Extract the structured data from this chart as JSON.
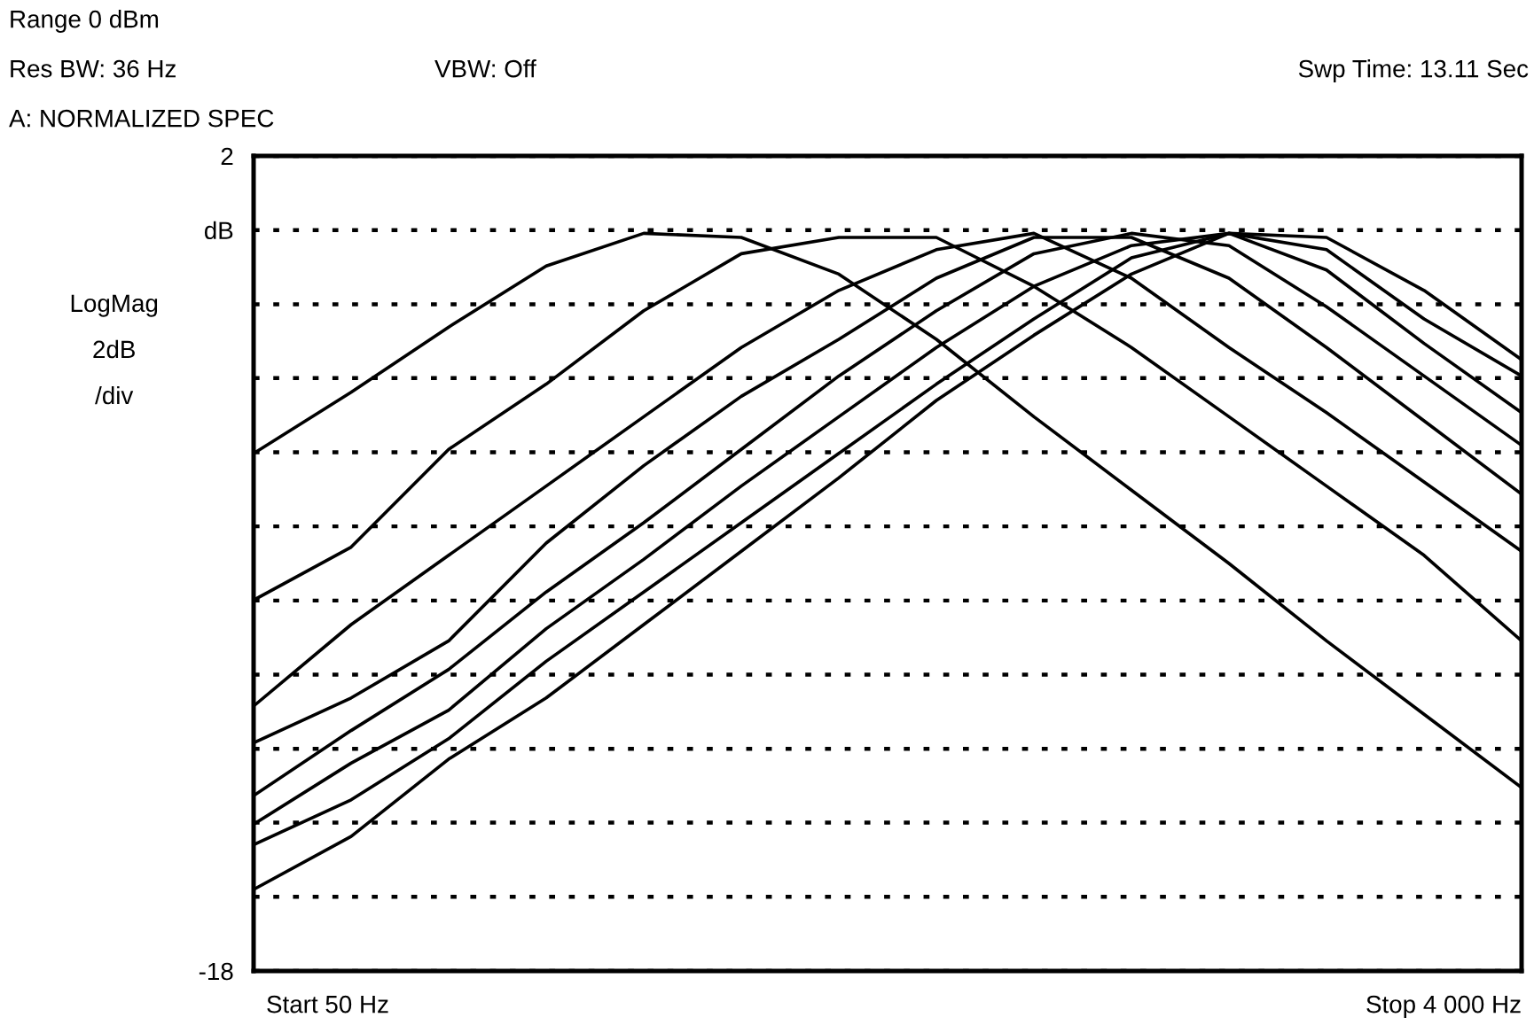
{
  "chart_data": {
    "type": "line",
    "annotations": [
      "Range 0 dBm",
      "Res BW: 36 Hz",
      "VBW: Off",
      "Swp Time: 13.11 Sec",
      "A: NORMALIZED SPEC",
      "Start 50 Hz",
      "Stop 4 000 Hz"
    ],
    "ylabel": "LogMag\n2dB\n/div",
    "categories": [
      null,
      null,
      null,
      null,
      null,
      null,
      null,
      null,
      null,
      null,
      null,
      null,
      null,
      null
    ],
    "ylim": [
      -18,
      2
    ],
    "yticks": [
      2,
      {
        "value": 0.18,
        "label": "dB"
      },
      {
        "value": -1.64,
        "label": null
      },
      {
        "value": -3.45,
        "label": null
      },
      {
        "value": -5.27,
        "label": null
      },
      {
        "value": -7.09,
        "label": null
      },
      {
        "value": -8.91,
        "label": null
      },
      {
        "value": -10.73,
        "label": null
      },
      {
        "value": -12.55,
        "label": null
      },
      {
        "value": -14.36,
        "label": null
      },
      {
        "value": -16.18,
        "label": null
      },
      -18
    ],
    "grid": "y",
    "line_style": "solid",
    "series": [
      {
        "color": "#000000",
        "values": [
          -5.3,
          -3.8,
          -2.2,
          -0.7,
          0.1,
          0.0,
          -0.9,
          -2.5,
          -4.4,
          -6.2,
          -8.0,
          -9.9,
          -11.7,
          -13.5
        ]
      },
      {
        "color": "#000000",
        "values": [
          -8.9,
          -7.6,
          -5.2,
          -3.6,
          -1.8,
          -0.4,
          0.0,
          0.0,
          -1.2,
          -2.7,
          -4.4,
          -6.1,
          -7.8,
          -9.9
        ]
      },
      {
        "color": "#000000",
        "values": [
          -11.5,
          -9.5,
          -7.8,
          -6.1,
          -4.4,
          -2.7,
          -1.3,
          -0.3,
          0.1,
          -1.0,
          -2.7,
          -4.3,
          -6.0,
          -7.7
        ]
      },
      {
        "color": "#000000",
        "values": [
          -12.4,
          -11.3,
          -9.9,
          -7.5,
          -5.6,
          -3.9,
          -2.5,
          -1.0,
          0.0,
          0.0,
          -1.0,
          -2.7,
          -4.5,
          -6.3
        ]
      },
      {
        "color": "#000000",
        "values": [
          -13.7,
          -12.1,
          -10.6,
          -8.7,
          -7.0,
          -5.2,
          -3.4,
          -1.8,
          -0.4,
          0.1,
          -0.2,
          -1.7,
          -3.4,
          -5.1
        ]
      },
      {
        "color": "#000000",
        "values": [
          -14.4,
          -12.9,
          -11.6,
          -9.6,
          -7.9,
          -6.1,
          -4.4,
          -2.7,
          -1.2,
          -0.2,
          0.1,
          -0.8,
          -2.6,
          -4.3
        ]
      },
      {
        "color": "#000000",
        "values": [
          -14.9,
          -13.8,
          -12.3,
          -10.4,
          -8.7,
          -7.0,
          -5.3,
          -3.6,
          -2.0,
          -0.5,
          0.1,
          -0.3,
          -2.0,
          -3.4
        ]
      },
      {
        "color": "#000000",
        "values": [
          -16.0,
          -14.7,
          -12.8,
          -11.3,
          -9.5,
          -7.7,
          -5.9,
          -4.0,
          -2.4,
          -0.9,
          0.1,
          0.0,
          -1.3,
          -3.0
        ]
      }
    ]
  }
}
